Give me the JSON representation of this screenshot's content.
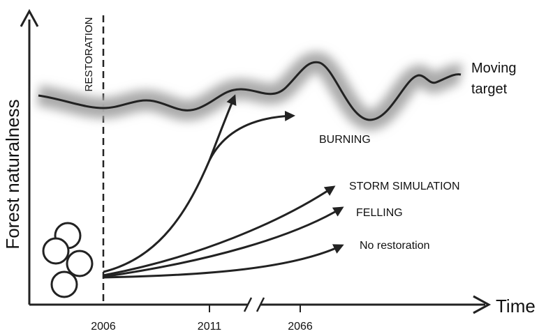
{
  "axes": {
    "y_label": "Forest naturalness",
    "x_label": "Time"
  },
  "ticks": [
    "2006",
    "2011",
    "2066"
  ],
  "restoration": "RESTORATION",
  "target": [
    "Moving",
    "target"
  ],
  "pathways": [
    "BURNING",
    "STORM SIMULATION",
    "FELLING",
    "No restoration"
  ]
}
